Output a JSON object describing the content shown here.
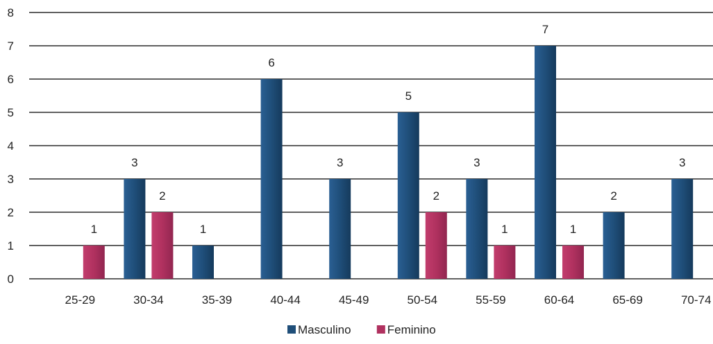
{
  "chart_data": {
    "type": "bar",
    "categories": [
      "25-29",
      "30-34",
      "35-39",
      "40-44",
      "45-49",
      "50-54",
      "55-59",
      "60-64",
      "65-69",
      "70-74"
    ],
    "series": [
      {
        "name": "Masculino",
        "values": [
          null,
          3,
          1,
          6,
          3,
          5,
          3,
          7,
          2,
          3
        ],
        "color": "#1f4e79"
      },
      {
        "name": "Feminino",
        "values": [
          1,
          2,
          null,
          null,
          null,
          2,
          1,
          1,
          null,
          null
        ],
        "color": "#b0315f"
      }
    ],
    "ylim": [
      0,
      8
    ],
    "yticks": [
      0,
      1,
      2,
      3,
      4,
      5,
      6,
      7,
      8
    ],
    "grid": true,
    "legend_position": "bottom"
  }
}
